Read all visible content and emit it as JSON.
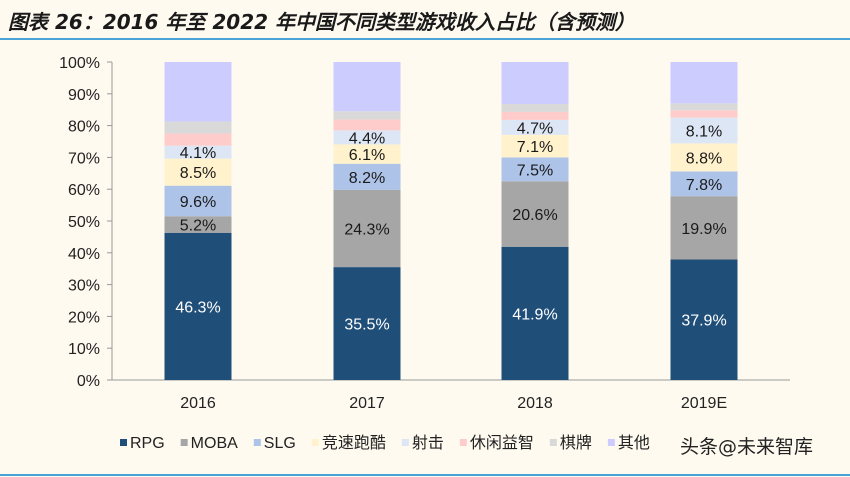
{
  "title": "图表 26：2016 年至 2022 年中国不同类型游戏收入占比（含预测）",
  "watermark": "头条@未来智库",
  "chart_data": {
    "type": "bar",
    "stacked": true,
    "categories": [
      "2016",
      "2017",
      "2018",
      "2019E"
    ],
    "ylim": [
      0,
      100
    ],
    "yticks": [
      "0%",
      "10%",
      "20%",
      "30%",
      "40%",
      "50%",
      "60%",
      "70%",
      "80%",
      "90%",
      "100%"
    ],
    "legend_position": "bottom",
    "grid": false,
    "series": [
      {
        "name": "RPG",
        "color": "#1f4e79",
        "values": [
          46.3,
          35.5,
          41.9,
          37.9
        ],
        "labels": [
          "46.3%",
          "35.5%",
          "41.9%",
          "37.9%"
        ],
        "label_color": "#ffffff"
      },
      {
        "name": "MOBA",
        "color": "#a6a6a6",
        "values": [
          5.2,
          24.3,
          20.6,
          19.9
        ],
        "labels": [
          "5.2%",
          "24.3%",
          "20.6%",
          "19.9%"
        ],
        "label_color": "#1a1a1a"
      },
      {
        "name": "SLG",
        "color": "#adc3e8",
        "values": [
          9.6,
          8.2,
          7.5,
          7.8
        ],
        "labels": [
          "9.6%",
          "8.2%",
          "7.5%",
          "7.8%"
        ],
        "label_color": "#1a1a1a"
      },
      {
        "name": "竞速跑酷",
        "color": "#fff2cc",
        "values": [
          8.5,
          6.1,
          7.1,
          8.8
        ],
        "labels": [
          "8.5%",
          "6.1%",
          "7.1%",
          "8.8%"
        ],
        "label_color": "#1a1a1a"
      },
      {
        "name": "射击",
        "color": "#dde6f5",
        "values": [
          4.1,
          4.4,
          4.7,
          8.1
        ],
        "labels": [
          "4.1%",
          "4.4%",
          "4.7%",
          "8.1%"
        ],
        "label_color": "#1a1a1a"
      },
      {
        "name": "休闲益智",
        "color": "#ffcccc",
        "values": [
          3.8,
          3.4,
          2.5,
          2.3
        ],
        "labels": null
      },
      {
        "name": "棋牌",
        "color": "#d9d9d9",
        "values": [
          3.8,
          2.6,
          2.5,
          2.2
        ],
        "labels": null
      },
      {
        "name": "其他",
        "color": "#ccccff",
        "values": [
          18.7,
          15.5,
          13.2,
          13.0
        ],
        "labels": null
      }
    ]
  }
}
